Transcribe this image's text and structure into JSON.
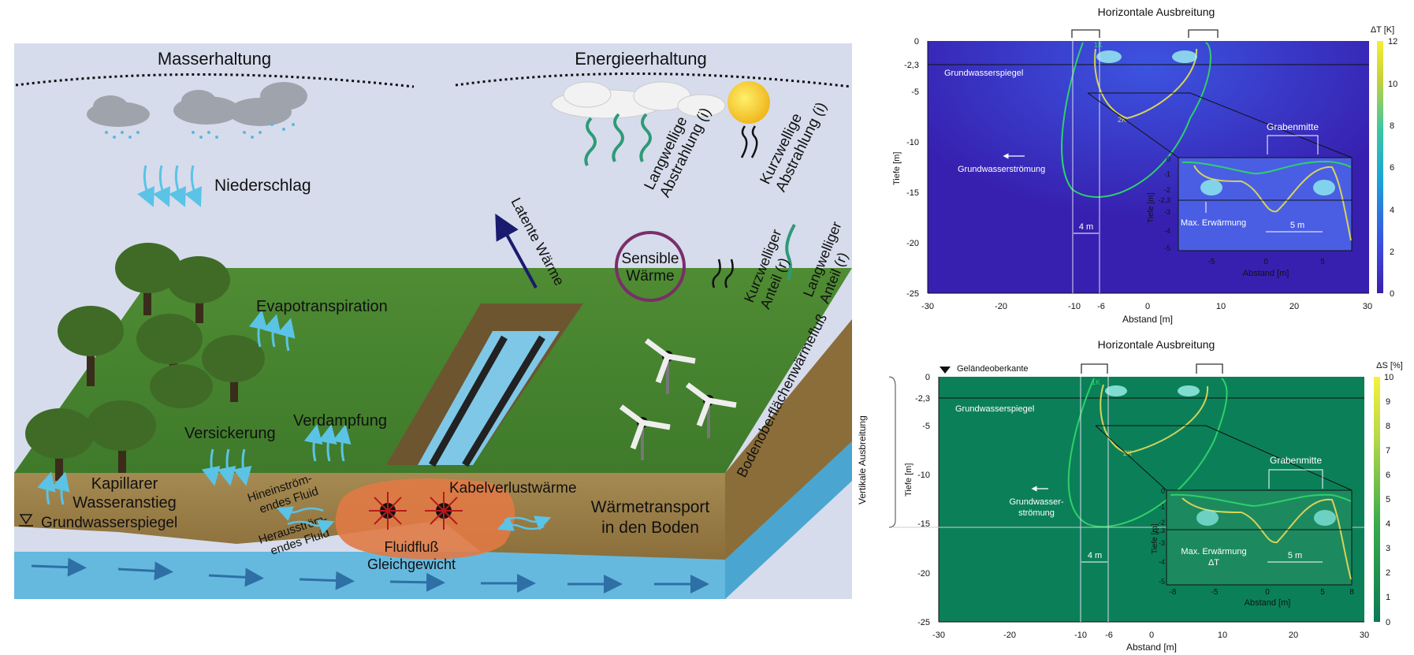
{
  "left_diagram": {
    "mass_title": "Masserhaltung",
    "energy_title": "Energieerhaltung",
    "precipitation": "Niederschlag",
    "longwave_emission": [
      "Langwellige",
      "Abstrahlung (i)"
    ],
    "shortwave_emission": [
      "Kurzwellige",
      "Abstrahlung (i)"
    ],
    "latent_heat": "Latente Wärme",
    "sensible_heat": [
      "Sensible",
      "Wärme"
    ],
    "shortwave_part": [
      "Kurzwelliger",
      "Anteil (r)"
    ],
    "longwave_part": [
      "Langwelliger",
      "Anteil (r)"
    ],
    "evapotranspiration": "Evapotranspiration",
    "evaporation": "Verdampfung",
    "infiltration": "Versickerung",
    "capillary_rise": [
      "Kapillarer",
      "Wasseranstieg"
    ],
    "groundwater_table": "Grundwasserspiegel",
    "inflowing_fluid": [
      "Hineinström-",
      "endes Fluid"
    ],
    "outflowing_fluid": [
      "Herausström-",
      "endes Fluid"
    ],
    "cable_loss_heat": "Kabelverlustwärme",
    "heat_transport": [
      "Wärmetransport",
      "in den Boden"
    ],
    "fluid_flow": [
      "Fluidfluß",
      "Gleichgewicht"
    ],
    "surface_heat_flux": "Bodenoberflächenwärmefluß"
  },
  "plot_top": {
    "header": "Horizontale Ausbreitung",
    "colorbar_label": "ΔT [K]",
    "colorbar_ticks": [
      "12",
      "10",
      "8",
      "6",
      "4",
      "2",
      "0"
    ],
    "y_label": "Tiefe [m]",
    "x_label": "Abstand [m]",
    "y_ticks": [
      "0",
      "-2,3",
      "-5",
      "-10",
      "-15",
      "-20",
      "-25"
    ],
    "x_ticks": [
      "-30",
      "-20",
      "-10",
      "-6",
      "0",
      "10",
      "20",
      "30"
    ],
    "groundwater_table": "Grundwasserspiegel",
    "groundwater_flow": "Grundwasserströmung",
    "width_4m": "4 m",
    "contour_1k": "1K",
    "contour_2k": "2K",
    "inset": {
      "title": "Grabenmitte",
      "max_warming": "Max. Erwärmung",
      "width_5m": "5 m",
      "y_label": "Tiefe [m]",
      "x_label": "Abstand [m]",
      "y_ticks": [
        "0",
        "-1",
        "-2",
        "-2,3",
        "-3",
        "-4",
        "-5"
      ],
      "x_ticks": [
        "-5",
        "0",
        "5"
      ]
    }
  },
  "plot_bottom": {
    "header": "Horizontale Ausbreitung",
    "colorbar_label": "ΔS [%]",
    "colorbar_ticks": [
      "10",
      "9",
      "8",
      "7",
      "6",
      "5",
      "4",
      "3",
      "2",
      "1",
      "0"
    ],
    "vertical_spread": "Vertikale Ausbreitung",
    "ground_surface": "Geländeoberkante",
    "y_label": "Tiefe [m]",
    "x_label": "Abstand [m]",
    "y_ticks": [
      "0",
      "-2,3",
      "-5",
      "-10",
      "-15",
      "-20",
      "-25"
    ],
    "x_ticks": [
      "-30",
      "-20",
      "-10",
      "-6",
      "0",
      "10",
      "20",
      "30"
    ],
    "groundwater_table": "Grundwasserspiegel",
    "groundwater_flow": [
      "Grundwasser-",
      "strömung"
    ],
    "width_4m": "4 m",
    "contour_1k": "1K",
    "contour_2k": "2K",
    "inset": {
      "title": "Grabenmitte",
      "max_warming": [
        "Max. Erwärmung",
        "ΔT"
      ],
      "width_5m": "5 m",
      "y_label": "Tiefe [m]",
      "x_label": "Abstand [m]",
      "y_ticks": [
        "0",
        "-1",
        "-2",
        "-2,3",
        "-3",
        "-4",
        "-5"
      ],
      "x_ticks": [
        "-8",
        "-5",
        "0",
        "5",
        "8"
      ]
    }
  }
}
